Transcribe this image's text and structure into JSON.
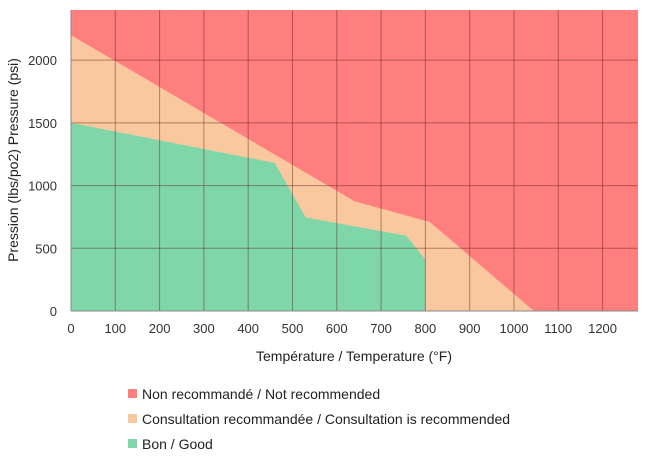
{
  "chart_data": {
    "type": "area",
    "xlabel": "Température / Temperature (°F)",
    "ylabel": "Pression (lbs/po2) Pressure (psi)",
    "xlim": [
      0,
      1280
    ],
    "ylim": [
      0,
      2400
    ],
    "xticks": [
      0,
      100,
      200,
      300,
      400,
      500,
      600,
      700,
      800,
      900,
      1000,
      1100,
      1200
    ],
    "yticks": [
      0,
      500,
      1000,
      1500,
      2000
    ],
    "grid": true,
    "legend_placement": "bottom",
    "series": [
      {
        "name": "Non recommandé / Not recommended",
        "color": "#FF7F7F",
        "points": [
          [
            0,
            2400
          ],
          [
            1280,
            2400
          ],
          [
            1280,
            0
          ],
          [
            0,
            0
          ]
        ]
      },
      {
        "name": "Consultation recommandée / Consultation is recommended",
        "color": "#F9C89F",
        "points": [
          [
            0,
            2200
          ],
          [
            640,
            875
          ],
          [
            810,
            710
          ],
          [
            1045,
            0
          ],
          [
            0,
            0
          ]
        ]
      },
      {
        "name": "Bon / Good",
        "color": "#7FD6A8",
        "points": [
          [
            0,
            1500
          ],
          [
            460,
            1180
          ],
          [
            530,
            746
          ],
          [
            757,
            600
          ],
          [
            800,
            410
          ],
          [
            800,
            0
          ],
          [
            0,
            0
          ]
        ]
      }
    ]
  }
}
